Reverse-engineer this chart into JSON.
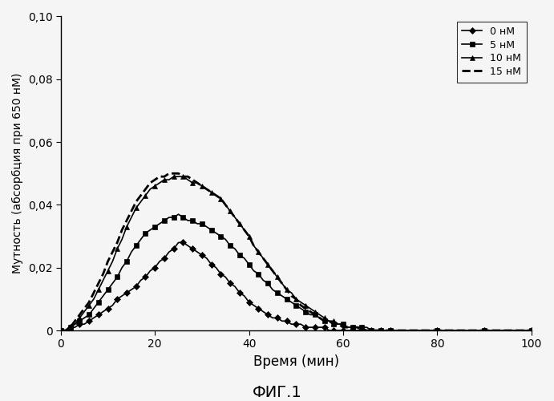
{
  "xlabel": "Время (мин)",
  "ylabel": "Мутность (абсорбция при 650 нМ)",
  "xlim": [
    0,
    100
  ],
  "ylim": [
    0,
    0.1
  ],
  "yticks": [
    0,
    0.02,
    0.04,
    0.06,
    0.08,
    0.1
  ],
  "xticks": [
    0,
    20,
    40,
    60,
    80,
    100
  ],
  "series": [
    {
      "label": "0 нМ",
      "marker": "D",
      "linestyle": "-",
      "color": "#000000",
      "x": [
        0,
        1,
        2,
        3,
        4,
        5,
        6,
        7,
        8,
        9,
        10,
        11,
        12,
        13,
        14,
        15,
        16,
        17,
        18,
        19,
        20,
        21,
        22,
        23,
        24,
        25,
        26,
        27,
        28,
        29,
        30,
        31,
        32,
        33,
        34,
        35,
        36,
        37,
        38,
        39,
        40,
        41,
        42,
        43,
        44,
        45,
        46,
        47,
        48,
        49,
        50,
        51,
        52,
        53,
        54,
        55,
        56,
        57,
        58,
        59,
        60,
        61,
        62,
        63,
        64,
        65,
        66,
        67,
        68,
        69,
        70,
        75,
        80,
        85,
        90,
        95,
        100
      ],
      "y": [
        0,
        0,
        0.001,
        0.001,
        0.002,
        0.002,
        0.003,
        0.004,
        0.005,
        0.006,
        0.007,
        0.008,
        0.01,
        0.011,
        0.012,
        0.013,
        0.014,
        0.016,
        0.017,
        0.019,
        0.02,
        0.022,
        0.023,
        0.025,
        0.026,
        0.028,
        0.028,
        0.027,
        0.026,
        0.025,
        0.024,
        0.023,
        0.021,
        0.02,
        0.018,
        0.017,
        0.015,
        0.014,
        0.012,
        0.011,
        0.009,
        0.008,
        0.007,
        0.006,
        0.005,
        0.004,
        0.004,
        0.003,
        0.003,
        0.002,
        0.002,
        0.002,
        0.001,
        0.001,
        0.001,
        0.001,
        0.001,
        0.0,
        0.0,
        0.0,
        0.0,
        0.0,
        0.0,
        0.0,
        0.0,
        0.0,
        0.0,
        0.0,
        0.0,
        0.0,
        0.0,
        0.0,
        0.0,
        0.0,
        0.0,
        0.0,
        0.0
      ]
    },
    {
      "label": "5 нМ",
      "marker": "s",
      "linestyle": "-",
      "color": "#000000",
      "x": [
        0,
        1,
        2,
        3,
        4,
        5,
        6,
        7,
        8,
        9,
        10,
        11,
        12,
        13,
        14,
        15,
        16,
        17,
        18,
        19,
        20,
        21,
        22,
        23,
        24,
        25,
        26,
        27,
        28,
        29,
        30,
        31,
        32,
        33,
        34,
        35,
        36,
        37,
        38,
        39,
        40,
        41,
        42,
        43,
        44,
        45,
        46,
        47,
        48,
        49,
        50,
        51,
        52,
        53,
        54,
        55,
        56,
        57,
        58,
        59,
        60,
        61,
        62,
        63,
        64,
        65,
        66,
        67,
        68,
        69,
        70,
        75,
        80,
        85,
        90,
        95,
        100
      ],
      "y": [
        0,
        0,
        0.001,
        0.002,
        0.003,
        0.004,
        0.005,
        0.007,
        0.009,
        0.011,
        0.013,
        0.015,
        0.017,
        0.02,
        0.022,
        0.025,
        0.027,
        0.029,
        0.031,
        0.032,
        0.033,
        0.034,
        0.035,
        0.036,
        0.036,
        0.037,
        0.036,
        0.035,
        0.035,
        0.034,
        0.034,
        0.033,
        0.032,
        0.031,
        0.03,
        0.029,
        0.027,
        0.026,
        0.024,
        0.023,
        0.021,
        0.019,
        0.018,
        0.016,
        0.015,
        0.013,
        0.012,
        0.011,
        0.01,
        0.009,
        0.008,
        0.007,
        0.006,
        0.005,
        0.005,
        0.004,
        0.003,
        0.003,
        0.002,
        0.002,
        0.002,
        0.001,
        0.001,
        0.001,
        0.001,
        0.001,
        0.0,
        0.0,
        0.0,
        0.0,
        0.0,
        0.0,
        0.0,
        0.0,
        0.0,
        0.0,
        0.0
      ]
    },
    {
      "label": "10 нМ",
      "marker": "^",
      "linestyle": "-",
      "color": "#000000",
      "x": [
        0,
        1,
        2,
        3,
        4,
        5,
        6,
        7,
        8,
        9,
        10,
        11,
        12,
        13,
        14,
        15,
        16,
        17,
        18,
        19,
        20,
        21,
        22,
        23,
        24,
        25,
        26,
        27,
        28,
        29,
        30,
        31,
        32,
        33,
        34,
        35,
        36,
        37,
        38,
        39,
        40,
        41,
        42,
        43,
        44,
        45,
        46,
        47,
        48,
        49,
        50,
        51,
        52,
        53,
        54,
        55,
        56,
        57,
        58,
        59,
        60,
        61,
        62,
        63,
        64,
        65,
        66,
        67,
        68,
        69,
        70,
        75,
        80,
        85,
        90,
        95,
        100
      ],
      "y": [
        0,
        0,
        0.001,
        0.002,
        0.004,
        0.006,
        0.008,
        0.01,
        0.013,
        0.016,
        0.019,
        0.022,
        0.026,
        0.029,
        0.033,
        0.036,
        0.039,
        0.041,
        0.043,
        0.045,
        0.046,
        0.047,
        0.048,
        0.048,
        0.049,
        0.049,
        0.049,
        0.048,
        0.047,
        0.047,
        0.046,
        0.045,
        0.044,
        0.043,
        0.042,
        0.04,
        0.038,
        0.036,
        0.034,
        0.032,
        0.03,
        0.027,
        0.025,
        0.023,
        0.021,
        0.019,
        0.017,
        0.015,
        0.013,
        0.012,
        0.01,
        0.009,
        0.008,
        0.007,
        0.006,
        0.005,
        0.004,
        0.003,
        0.003,
        0.002,
        0.002,
        0.001,
        0.001,
        0.001,
        0.001,
        0.0,
        0.0,
        0.0,
        0.0,
        0.0,
        0.0,
        0.0,
        0.0,
        0.0,
        0.0,
        0.0,
        0.0
      ]
    },
    {
      "label": "15 нМ",
      "marker": "_",
      "linestyle": "--",
      "color": "#000000",
      "x": [
        0,
        1,
        2,
        3,
        4,
        5,
        6,
        7,
        8,
        9,
        10,
        11,
        12,
        13,
        14,
        15,
        16,
        17,
        18,
        19,
        20,
        21,
        22,
        23,
        24,
        25,
        26,
        27,
        28,
        29,
        30,
        31,
        32,
        33,
        34,
        35,
        36,
        37,
        38,
        39,
        40,
        41,
        42,
        43,
        44,
        45,
        46,
        47,
        48,
        49,
        50,
        51,
        52,
        53,
        54,
        55,
        56,
        57,
        58,
        59,
        60,
        61,
        62,
        63,
        64,
        65,
        66,
        67,
        68,
        69,
        70,
        75,
        80,
        85,
        90,
        95,
        100
      ],
      "y": [
        0,
        0,
        0.001,
        0.003,
        0.005,
        0.007,
        0.009,
        0.012,
        0.015,
        0.018,
        0.022,
        0.025,
        0.028,
        0.032,
        0.035,
        0.038,
        0.041,
        0.043,
        0.045,
        0.047,
        0.048,
        0.049,
        0.049,
        0.05,
        0.05,
        0.05,
        0.049,
        0.049,
        0.048,
        0.047,
        0.046,
        0.045,
        0.044,
        0.043,
        0.042,
        0.04,
        0.038,
        0.036,
        0.034,
        0.032,
        0.03,
        0.027,
        0.025,
        0.023,
        0.021,
        0.019,
        0.017,
        0.015,
        0.013,
        0.011,
        0.01,
        0.008,
        0.007,
        0.006,
        0.005,
        0.004,
        0.003,
        0.003,
        0.002,
        0.002,
        0.001,
        0.001,
        0.001,
        0.001,
        0.0,
        0.0,
        0.0,
        0.0,
        0.0,
        0.0,
        0.0,
        0.0,
        0.0,
        0.0,
        0.0,
        0.0,
        0.0
      ]
    }
  ],
  "background_color": "#f5f5f5",
  "figure_caption": "ФИГ.1"
}
